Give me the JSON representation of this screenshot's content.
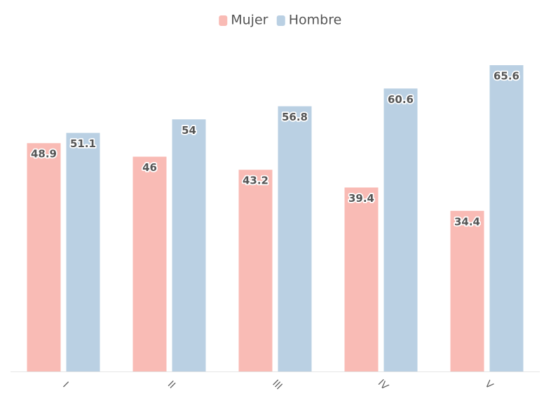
{
  "chart_data": {
    "type": "bar",
    "categories": [
      "I",
      "II",
      "III",
      "IV",
      "V"
    ],
    "series": [
      {
        "name": "Mujer",
        "color": "#f9bbb5",
        "values": [
          48.9,
          46,
          43.2,
          39.4,
          34.4
        ]
      },
      {
        "name": "Hombre",
        "color": "#bad0e3",
        "values": [
          51.1,
          54,
          56.8,
          60.6,
          65.6
        ]
      }
    ],
    "legend": "top"
  }
}
